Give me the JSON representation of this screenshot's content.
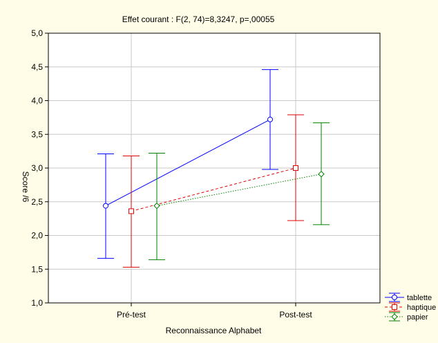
{
  "chart_data": {
    "type": "line",
    "title": "Effet courant : F(2, 74)=8,3247, p=,00055",
    "xlabel": "Reconnaissance Alphabet",
    "ylabel": "Score /6",
    "categories": [
      "Pré-test",
      "Post-test"
    ],
    "ylim": [
      1.0,
      5.0
    ],
    "yticks": [
      1.0,
      1.5,
      2.0,
      2.5,
      3.0,
      3.5,
      4.0,
      4.5,
      5.0
    ],
    "ytick_labels": [
      "1,0",
      "1,5",
      "2,0",
      "2,5",
      "3,0",
      "3,5",
      "4,0",
      "4,5",
      "5,0"
    ],
    "grid": true,
    "legend_position": "bottom-right",
    "series": [
      {
        "name": "tablette",
        "color": "#0000ff",
        "marker": "circle",
        "line_style": "solid",
        "values": [
          2.44,
          3.72
        ],
        "error_low": [
          1.66,
          2.98
        ],
        "error_high": [
          3.21,
          4.46
        ]
      },
      {
        "name": "haptique",
        "color": "#e00000",
        "marker": "square",
        "line_style": "dashed",
        "values": [
          2.36,
          3.0
        ],
        "error_low": [
          1.53,
          2.22
        ],
        "error_high": [
          3.18,
          3.79
        ]
      },
      {
        "name": "papier",
        "color": "#008000",
        "marker": "diamond",
        "line_style": "dotted",
        "values": [
          2.44,
          2.91
        ],
        "error_low": [
          1.64,
          2.16
        ],
        "error_high": [
          3.22,
          3.67
        ]
      }
    ]
  }
}
